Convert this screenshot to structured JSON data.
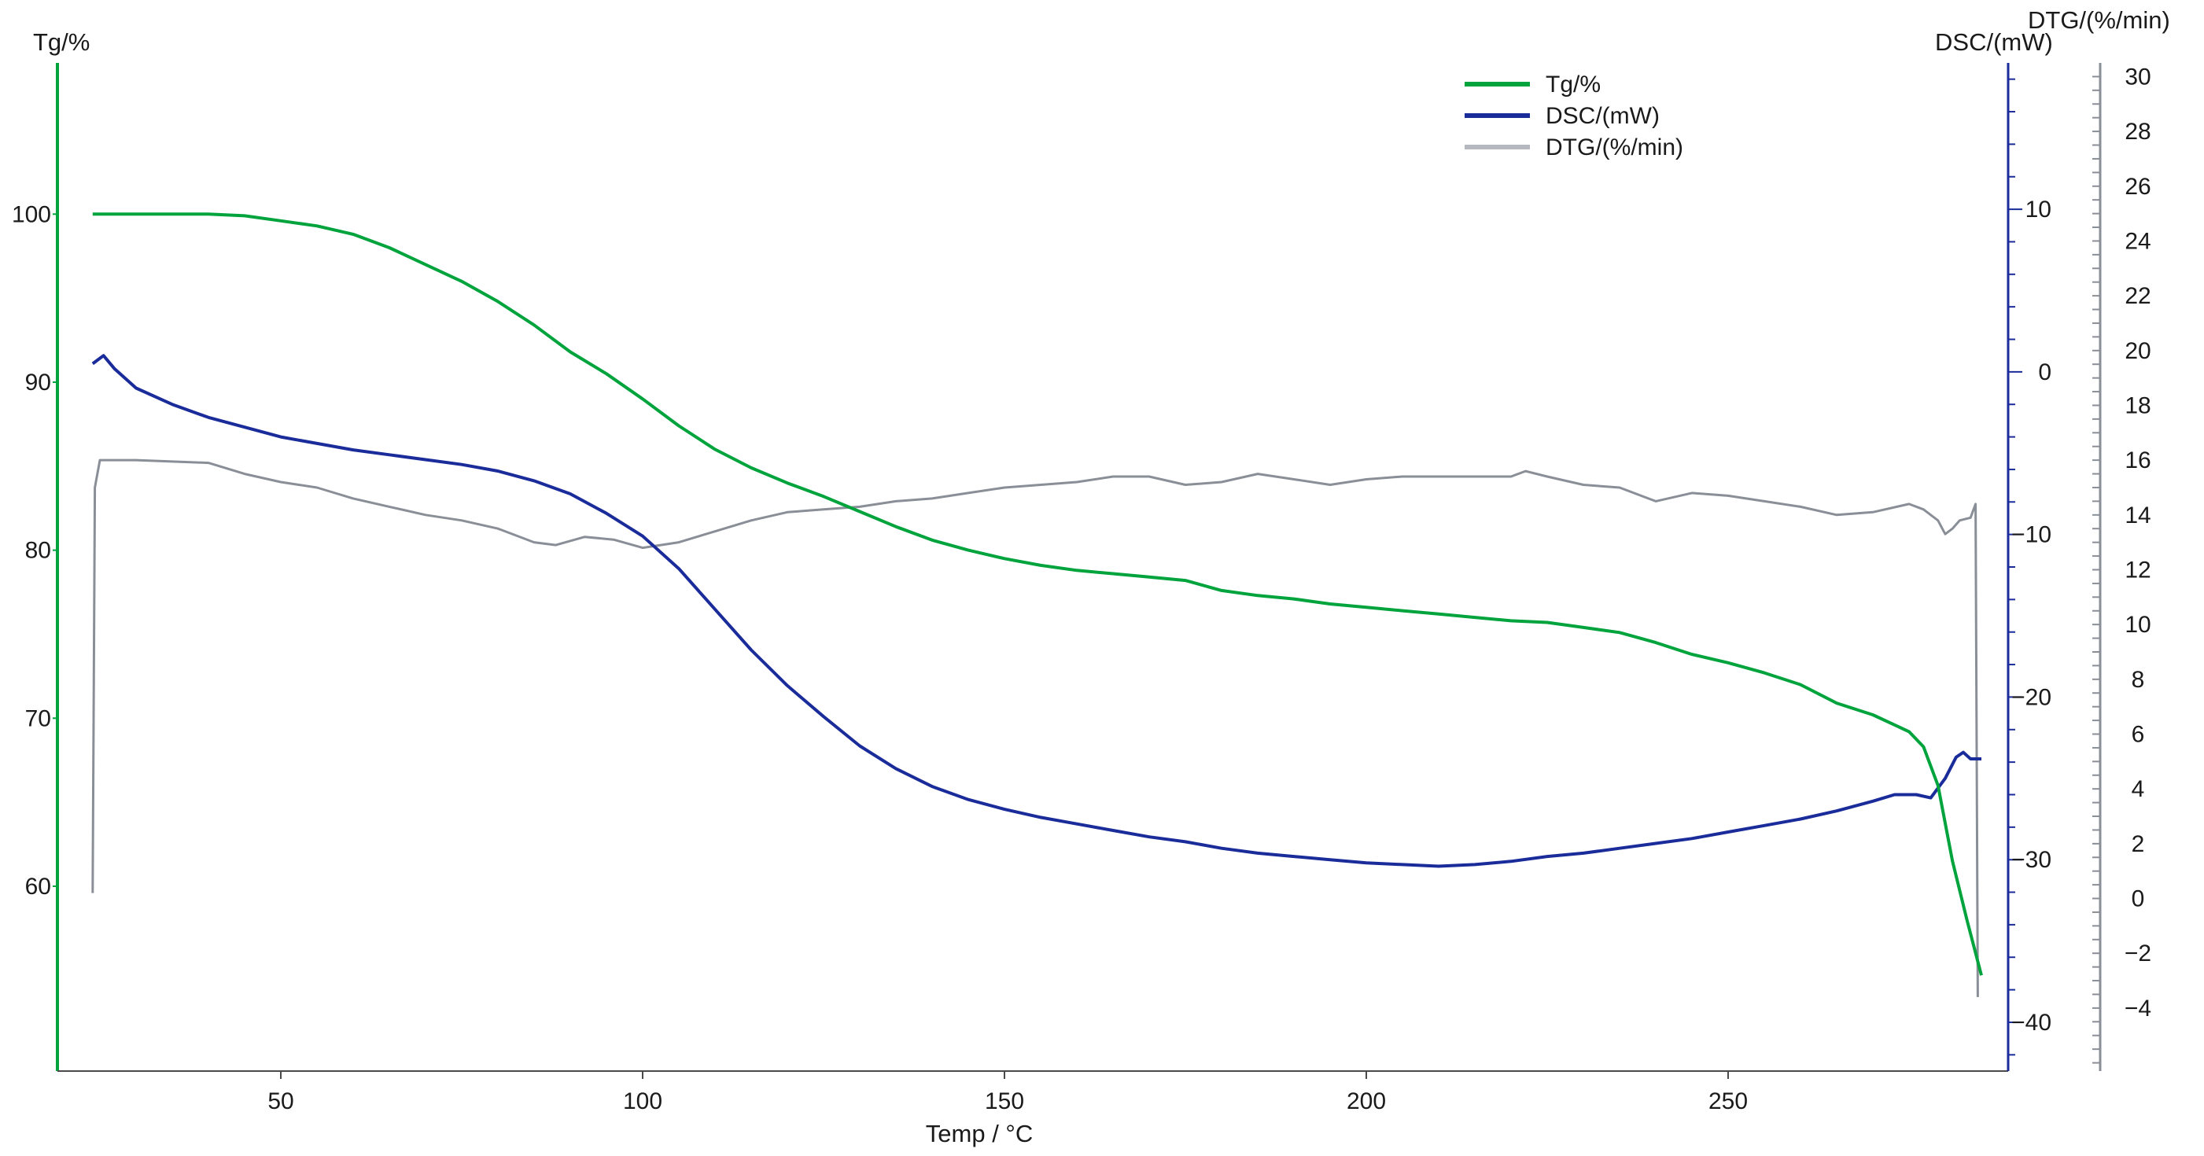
{
  "chart_data": {
    "type": "line",
    "xlabel": "Temp / °C",
    "x_ticks": [
      50,
      100,
      150,
      200,
      250
    ],
    "xlim": [
      20.5,
      285
    ],
    "axes": {
      "tg": {
        "label": "Tg/%",
        "ticks": [
          60,
          70,
          80,
          90,
          100
        ],
        "ylim": [
          49,
          109
        ],
        "color": "#00a33c"
      },
      "dsc": {
        "label": "DSC/(mW)",
        "ticks": [
          -40,
          -30,
          -20,
          -10,
          0,
          10
        ],
        "ylim": [
          -43,
          19
        ],
        "color": "#1a2b9a"
      },
      "dtg": {
        "label": "DTG/(%/min)",
        "ticks": [
          -4,
          -2,
          0,
          2,
          4,
          6,
          8,
          10,
          12,
          14,
          16,
          18,
          20,
          22,
          24,
          26,
          28,
          30
        ],
        "ylim": [
          -6.3,
          30.5
        ],
        "color": "#8a8f97"
      }
    },
    "series": [
      {
        "name": "Tg/%",
        "axis": "tg",
        "color": "#00a33c",
        "points": [
          [
            24,
            100
          ],
          [
            30,
            100
          ],
          [
            40,
            100
          ],
          [
            45,
            99.9
          ],
          [
            50,
            99.6
          ],
          [
            55,
            99.3
          ],
          [
            60,
            98.8
          ],
          [
            65,
            98.0
          ],
          [
            70,
            97.0
          ],
          [
            75,
            96.0
          ],
          [
            80,
            94.8
          ],
          [
            85,
            93.4
          ],
          [
            90,
            91.8
          ],
          [
            95,
            90.5
          ],
          [
            100,
            89.0
          ],
          [
            105,
            87.4
          ],
          [
            110,
            86.0
          ],
          [
            115,
            84.9
          ],
          [
            120,
            84.0
          ],
          [
            125,
            83.2
          ],
          [
            130,
            82.3
          ],
          [
            135,
            81.4
          ],
          [
            140,
            80.6
          ],
          [
            145,
            80.0
          ],
          [
            150,
            79.5
          ],
          [
            155,
            79.1
          ],
          [
            160,
            78.8
          ],
          [
            165,
            78.6
          ],
          [
            170,
            78.4
          ],
          [
            175,
            78.2
          ],
          [
            180,
            77.6
          ],
          [
            185,
            77.3
          ],
          [
            190,
            77.1
          ],
          [
            195,
            76.8
          ],
          [
            200,
            76.6
          ],
          [
            205,
            76.4
          ],
          [
            210,
            76.2
          ],
          [
            215,
            76.0
          ],
          [
            220,
            75.8
          ],
          [
            225,
            75.7
          ],
          [
            230,
            75.4
          ],
          [
            235,
            75.1
          ],
          [
            240,
            74.5
          ],
          [
            245,
            73.8
          ],
          [
            250,
            73.3
          ],
          [
            255,
            72.7
          ],
          [
            260,
            72.0
          ],
          [
            265,
            70.9
          ],
          [
            270,
            70.2
          ],
          [
            275,
            69.2
          ],
          [
            277,
            68.3
          ],
          [
            279,
            66.0
          ],
          [
            281,
            61.5
          ],
          [
            283,
            58.0
          ],
          [
            285,
            54.7
          ]
        ]
      },
      {
        "name": "DSC/(mW)",
        "axis": "dsc",
        "color": "#1a2b9a",
        "points": [
          [
            24,
            0.5
          ],
          [
            25.5,
            1.0
          ],
          [
            27,
            0.2
          ],
          [
            30,
            -1.0
          ],
          [
            35,
            -2.0
          ],
          [
            40,
            -2.8
          ],
          [
            45,
            -3.4
          ],
          [
            50,
            -4.0
          ],
          [
            55,
            -4.4
          ],
          [
            60,
            -4.8
          ],
          [
            65,
            -5.1
          ],
          [
            70,
            -5.4
          ],
          [
            75,
            -5.7
          ],
          [
            80,
            -6.1
          ],
          [
            85,
            -6.7
          ],
          [
            90,
            -7.5
          ],
          [
            95,
            -8.7
          ],
          [
            100,
            -10.1
          ],
          [
            105,
            -12.1
          ],
          [
            110,
            -14.6
          ],
          [
            115,
            -17.1
          ],
          [
            120,
            -19.3
          ],
          [
            125,
            -21.2
          ],
          [
            130,
            -23.0
          ],
          [
            135,
            -24.4
          ],
          [
            140,
            -25.5
          ],
          [
            145,
            -26.3
          ],
          [
            150,
            -26.9
          ],
          [
            155,
            -27.4
          ],
          [
            160,
            -27.8
          ],
          [
            165,
            -28.2
          ],
          [
            170,
            -28.6
          ],
          [
            175,
            -28.9
          ],
          [
            180,
            -29.3
          ],
          [
            185,
            -29.6
          ],
          [
            190,
            -29.8
          ],
          [
            195,
            -30.0
          ],
          [
            200,
            -30.2
          ],
          [
            205,
            -30.3
          ],
          [
            210,
            -30.4
          ],
          [
            215,
            -30.3
          ],
          [
            220,
            -30.1
          ],
          [
            225,
            -29.8
          ],
          [
            230,
            -29.6
          ],
          [
            235,
            -29.3
          ],
          [
            240,
            -29.0
          ],
          [
            245,
            -28.7
          ],
          [
            250,
            -28.3
          ],
          [
            255,
            -27.9
          ],
          [
            260,
            -27.5
          ],
          [
            265,
            -27.0
          ],
          [
            270,
            -26.4
          ],
          [
            273,
            -26.0
          ],
          [
            276,
            -26.0
          ],
          [
            278,
            -26.2
          ],
          [
            280,
            -25.0
          ],
          [
            281.5,
            -23.7
          ],
          [
            282.5,
            -23.4
          ],
          [
            283.5,
            -23.8
          ],
          [
            285,
            -23.8
          ]
        ]
      },
      {
        "name": "DTG/(%/min)",
        "axis": "dtg",
        "color": "#8a8f97",
        "points": [
          [
            24,
            0.2
          ],
          [
            24.3,
            15.0
          ],
          [
            25,
            16.0
          ],
          [
            30,
            16.0
          ],
          [
            40,
            15.9
          ],
          [
            45,
            15.5
          ],
          [
            50,
            15.2
          ],
          [
            55,
            15.0
          ],
          [
            60,
            14.6
          ],
          [
            65,
            14.3
          ],
          [
            70,
            14.0
          ],
          [
            75,
            13.8
          ],
          [
            80,
            13.5
          ],
          [
            85,
            13.0
          ],
          [
            88,
            12.9
          ],
          [
            92,
            13.2
          ],
          [
            96,
            13.1
          ],
          [
            100,
            12.8
          ],
          [
            105,
            13.0
          ],
          [
            110,
            13.4
          ],
          [
            115,
            13.8
          ],
          [
            120,
            14.1
          ],
          [
            125,
            14.2
          ],
          [
            130,
            14.3
          ],
          [
            135,
            14.5
          ],
          [
            140,
            14.6
          ],
          [
            145,
            14.8
          ],
          [
            150,
            15.0
          ],
          [
            155,
            15.1
          ],
          [
            160,
            15.2
          ],
          [
            165,
            15.4
          ],
          [
            170,
            15.4
          ],
          [
            175,
            15.1
          ],
          [
            180,
            15.2
          ],
          [
            185,
            15.5
          ],
          [
            190,
            15.3
          ],
          [
            195,
            15.1
          ],
          [
            200,
            15.3
          ],
          [
            205,
            15.4
          ],
          [
            210,
            15.4
          ],
          [
            215,
            15.4
          ],
          [
            220,
            15.4
          ],
          [
            222,
            15.6
          ],
          [
            225,
            15.4
          ],
          [
            230,
            15.1
          ],
          [
            235,
            15.0
          ],
          [
            240,
            14.5
          ],
          [
            245,
            14.8
          ],
          [
            250,
            14.7
          ],
          [
            255,
            14.5
          ],
          [
            260,
            14.3
          ],
          [
            265,
            14.0
          ],
          [
            270,
            14.1
          ],
          [
            275,
            14.4
          ],
          [
            277,
            14.2
          ],
          [
            279,
            13.8
          ],
          [
            280,
            13.3
          ],
          [
            281,
            13.5
          ],
          [
            282,
            13.8
          ],
          [
            283.5,
            13.9
          ],
          [
            284.2,
            14.4
          ],
          [
            284.5,
            -3.6
          ]
        ]
      }
    ],
    "legend": {
      "position": "top-center-right",
      "entries": [
        "Tg/%",
        "DSC/(mW)",
        "DTG/(%/min)"
      ]
    },
    "grid": false
  }
}
